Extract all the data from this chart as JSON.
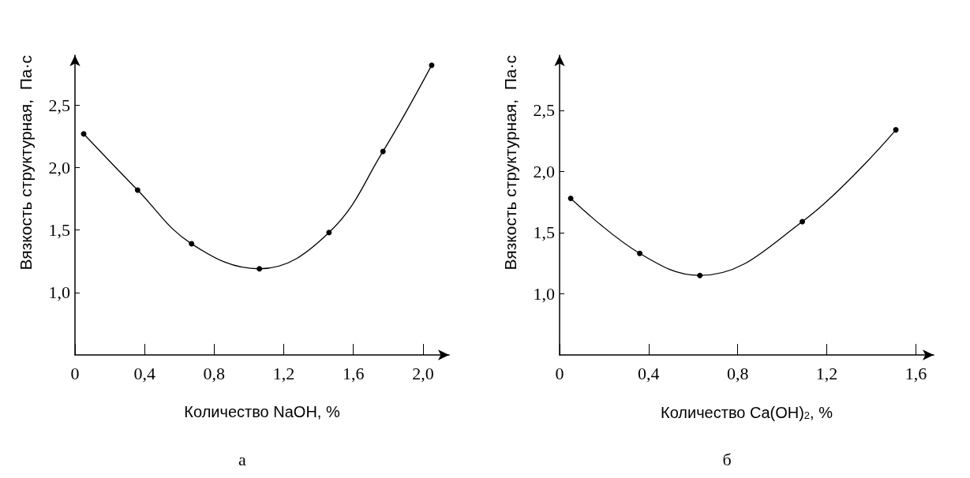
{
  "chart_data": [
    {
      "type": "line",
      "xlabel": "Количество NaOH, %",
      "ylabel": "Вязкость структурная,  Па·с",
      "annotations": [
        "а"
      ],
      "x": [
        0.05,
        0.36,
        0.67,
        1.06,
        1.46,
        1.77,
        2.05
      ],
      "series": [
        {
          "color": "#000000",
          "values": [
            2.27,
            1.82,
            1.39,
            1.19,
            1.48,
            2.13,
            2.82
          ]
        }
      ],
      "xlim": [
        0,
        2.15
      ],
      "ylim": [
        0.5,
        2.9
      ],
      "xticks": [
        0,
        {
          "value": 0.4,
          "label": "0,4"
        },
        {
          "value": 0.8,
          "label": "0,8"
        },
        {
          "value": 1.2,
          "label": "1,2"
        },
        {
          "value": 1.6,
          "label": "1,6"
        },
        {
          "value": 2.0,
          "label": "2,0"
        }
      ],
      "yticks": [
        {
          "value": 1.0,
          "label": "1,0"
        },
        {
          "value": 1.5,
          "label": "1,5"
        },
        {
          "value": 2.0,
          "label": "2,0"
        },
        {
          "value": 2.5,
          "label": "2,5"
        }
      ],
      "grid": false,
      "marker": "circle",
      "line_style": "solid"
    },
    {
      "type": "line",
      "xlabel": "Количество Ca(OH)$_{2}$, %",
      "ylabel": "Вязкость структурная,  Па·с",
      "annotations": [
        "б"
      ],
      "x": [
        0.05,
        0.36,
        0.63,
        1.09,
        1.51
      ],
      "series": [
        {
          "color": "#000000",
          "values": [
            1.78,
            1.33,
            1.15,
            1.59,
            2.34
          ]
        }
      ],
      "xlim": [
        0,
        1.68
      ],
      "ylim": [
        0.5,
        2.95
      ],
      "xticks": [
        0,
        {
          "value": 0.4,
          "label": "0,4"
        },
        {
          "value": 0.8,
          "label": "0,8"
        },
        {
          "value": 1.2,
          "label": "1,2"
        },
        {
          "value": 1.6,
          "label": "1,6"
        }
      ],
      "yticks": [
        {
          "value": 1.0,
          "label": "1,0"
        },
        {
          "value": 1.5,
          "label": "1,5"
        },
        {
          "value": 2.0,
          "label": "2,0"
        },
        {
          "value": 2.5,
          "label": "2,5"
        }
      ],
      "grid": false,
      "marker": "circle",
      "line_style": "solid"
    }
  ]
}
